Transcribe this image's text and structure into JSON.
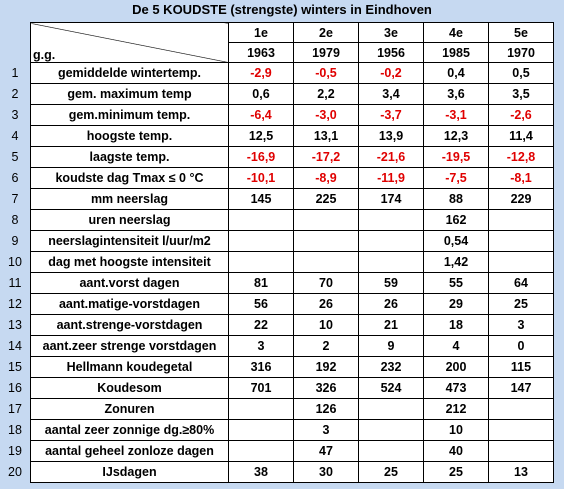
{
  "title": "De 5  KOUDSTE (strengste)  winters in Eindhoven",
  "header": {
    "corner": "g.g.",
    "ranks": [
      "1e",
      "2e",
      "3e",
      "4e",
      "5e"
    ],
    "years": [
      "1963",
      "1979",
      "1956",
      "1985",
      "1970"
    ]
  },
  "rows": [
    {
      "number": "1",
      "label": "gemiddelde wintertemp.",
      "values": [
        "-2,9",
        "-0,5",
        "-0,2",
        "0,4",
        "0,5"
      ]
    },
    {
      "number": "2",
      "label": "gem. maximum temp",
      "values": [
        "0,6",
        "2,2",
        "3,4",
        "3,6",
        "3,5"
      ]
    },
    {
      "number": "3",
      "label": "gem.minimum temp.",
      "values": [
        "-6,4",
        "-3,0",
        "-3,7",
        "-3,1",
        "-2,6"
      ]
    },
    {
      "number": "4",
      "label": "hoogste temp.",
      "values": [
        "12,5",
        "13,1",
        "13,9",
        "12,3",
        "11,4"
      ]
    },
    {
      "number": "5",
      "label": "laagste temp.",
      "values": [
        "-16,9",
        "-17,2",
        "-21,6",
        "-19,5",
        "-12,8"
      ]
    },
    {
      "number": "6",
      "label": "koudste dag Tmax ≤ 0 °C",
      "values": [
        "-10,1",
        "-8,9",
        "-11,9",
        "-7,5",
        "-8,1"
      ]
    },
    {
      "number": "7",
      "label": "mm neerslag",
      "values": [
        "145",
        "225",
        "174",
        "88",
        "229"
      ]
    },
    {
      "number": "8",
      "label": "uren neerslag",
      "values": [
        null,
        null,
        null,
        "162",
        null
      ]
    },
    {
      "number": "9",
      "label": "neerslagintensiteit l/uur/m2",
      "values": [
        null,
        null,
        null,
        "0,54",
        null
      ]
    },
    {
      "number": "10",
      "label": "dag met hoogste intensiteit",
      "values": [
        null,
        null,
        null,
        "1,42",
        null
      ]
    },
    {
      "number": "11",
      "label": "aant.vorst dagen",
      "values": [
        "81",
        "70",
        "59",
        "55",
        "64"
      ]
    },
    {
      "number": "12",
      "label": "aant.matige-vorstdagen",
      "values": [
        "56",
        "26",
        "26",
        "29",
        "25"
      ]
    },
    {
      "number": "13",
      "label": "aant.strenge-vorstdagen",
      "values": [
        "22",
        "10",
        "21",
        "18",
        "3"
      ]
    },
    {
      "number": "14",
      "label": "aant.zeer strenge vorstdagen",
      "values": [
        "3",
        "2",
        "9",
        "4",
        "0"
      ]
    },
    {
      "number": "15",
      "label": "Hellmann koudegetal",
      "values": [
        "316",
        "192",
        "232",
        "200",
        "115"
      ]
    },
    {
      "number": "16",
      "label": "Koudesom",
      "values": [
        "701",
        "326",
        "524",
        "473",
        "147"
      ]
    },
    {
      "number": "17",
      "label": "Zonuren",
      "values": [
        null,
        "126",
        null,
        "212",
        null
      ]
    },
    {
      "number": "18",
      "label": "aantal zeer zonnige dg.≥80%",
      "values": [
        null,
        "3",
        null,
        "10",
        null
      ]
    },
    {
      "number": "19",
      "label": "aantal geheel zonloze dagen",
      "values": [
        null,
        "47",
        null,
        "40",
        null
      ]
    },
    {
      "number": "20",
      "label": "IJsdagen",
      "values": [
        "38",
        "30",
        "25",
        "25",
        "13"
      ]
    }
  ]
}
